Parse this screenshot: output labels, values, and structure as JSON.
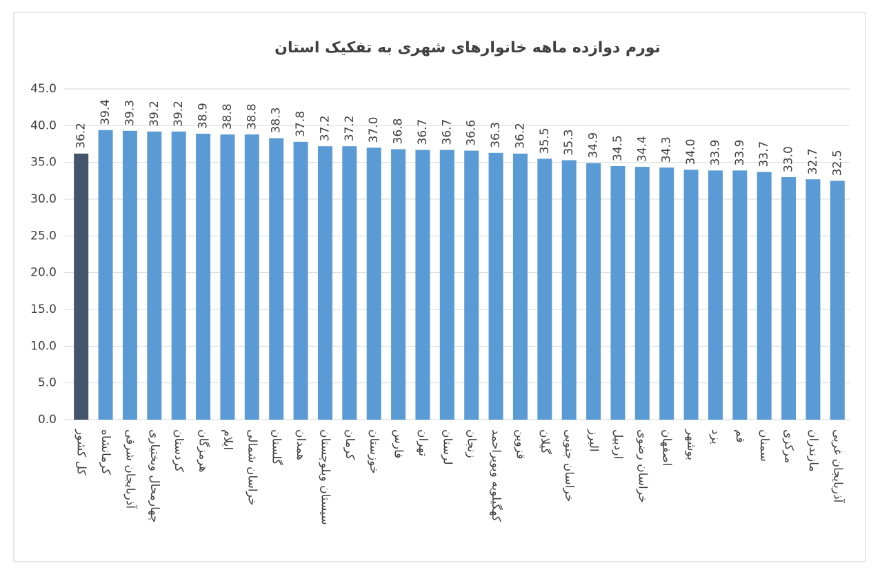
{
  "chart_data": {
    "type": "bar",
    "title": "تورم دوازده ماهه خانوارهای شهری به تفکیک استان",
    "categories": [
      "کل کشور",
      "کرمانشاه",
      "آذربایجان شرقی",
      "چهارمحال وبختیاری",
      "کردستان",
      "هرمزگان",
      "ایلام",
      "خراسان شمالی",
      "گلستان",
      "همدان",
      "سیستان وبلوچستان",
      "کرمان",
      "خوزستان",
      "فارس",
      "تهران",
      "لرستان",
      "زنجان",
      "کهگیلویه وبویراحمد",
      "قزوین",
      "گیلان",
      "خراسان جنوبی",
      "البرز",
      "اردبیل",
      "خراسان رضوی",
      "اصفهان",
      "بوشهر",
      "یزد",
      "قم",
      "سمنان",
      "مرکزی",
      "مازندران",
      "آذربایجان غربی"
    ],
    "values": [
      36.2,
      39.4,
      39.3,
      39.2,
      39.2,
      38.9,
      38.8,
      38.8,
      38.3,
      37.8,
      37.2,
      37.2,
      37.0,
      36.8,
      36.7,
      36.7,
      36.6,
      36.3,
      36.2,
      35.5,
      35.3,
      34.9,
      34.5,
      34.4,
      34.3,
      34.0,
      33.9,
      33.9,
      33.7,
      33.0,
      32.7,
      32.5
    ],
    "value_labels": [
      "36.2",
      "39.4",
      "39.3",
      "39.2",
      "39.2",
      "38.9",
      "38.8",
      "38.8",
      "38.3",
      "37.8",
      "37.2",
      "37.2",
      "37.0",
      "36.8",
      "36.7",
      "36.7",
      "36.6",
      "36.3",
      "36.2",
      "35.5",
      "35.3",
      "34.9",
      "34.5",
      "34.4",
      "34.3",
      "34.0",
      "33.9",
      "33.9",
      "33.7",
      "33.0",
      "32.7",
      "32.5"
    ],
    "colors": [
      "#44546a",
      "#5b9bd5",
      "#5b9bd5",
      "#5b9bd5",
      "#5b9bd5",
      "#5b9bd5",
      "#5b9bd5",
      "#5b9bd5",
      "#5b9bd5",
      "#5b9bd5",
      "#5b9bd5",
      "#5b9bd5",
      "#5b9bd5",
      "#5b9bd5",
      "#5b9bd5",
      "#5b9bd5",
      "#5b9bd5",
      "#5b9bd5",
      "#5b9bd5",
      "#5b9bd5",
      "#5b9bd5",
      "#5b9bd5",
      "#5b9bd5",
      "#5b9bd5",
      "#5b9bd5",
      "#5b9bd5",
      "#5b9bd5",
      "#5b9bd5",
      "#5b9bd5",
      "#5b9bd5",
      "#5b9bd5",
      "#5b9bd5"
    ],
    "ylim": [
      0,
      45
    ],
    "yticks": [
      {
        "value": 0,
        "label": "0.0"
      },
      {
        "value": 5,
        "label": "5.0"
      },
      {
        "value": 10,
        "label": "10.0"
      },
      {
        "value": 15,
        "label": "15.0"
      },
      {
        "value": 20,
        "label": "20.0"
      },
      {
        "value": 25,
        "label": "25.0"
      },
      {
        "value": 30,
        "label": "30.0"
      },
      {
        "value": 35,
        "label": "35.0"
      },
      {
        "value": 40,
        "label": "40.0"
      },
      {
        "value": 45,
        "label": "45.0"
      }
    ],
    "grid": true
  }
}
